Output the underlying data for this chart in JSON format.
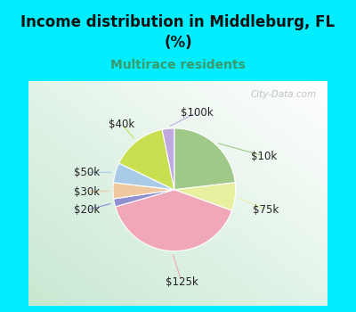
{
  "title": "Income distribution in Middleburg, FL\n(%)",
  "subtitle": "Multirace residents",
  "title_color": "#111111",
  "subtitle_color": "#3a9a6a",
  "background_color": "#00eeff",
  "labels": [
    "$10k",
    "$75k",
    "$125k",
    "$20k",
    "$30k",
    "$50k",
    "$40k",
    "$100k"
  ],
  "sizes": [
    22,
    7,
    38,
    2,
    4,
    5,
    14,
    3
  ],
  "colors": [
    "#a0c888",
    "#e8f0a0",
    "#f0a8b8",
    "#9090d0",
    "#f0c8a0",
    "#a8cce8",
    "#c8e050",
    "#c0a8e0"
  ],
  "watermark": "City-Data.com",
  "startangle": 90,
  "label_fontsize": 8.5
}
